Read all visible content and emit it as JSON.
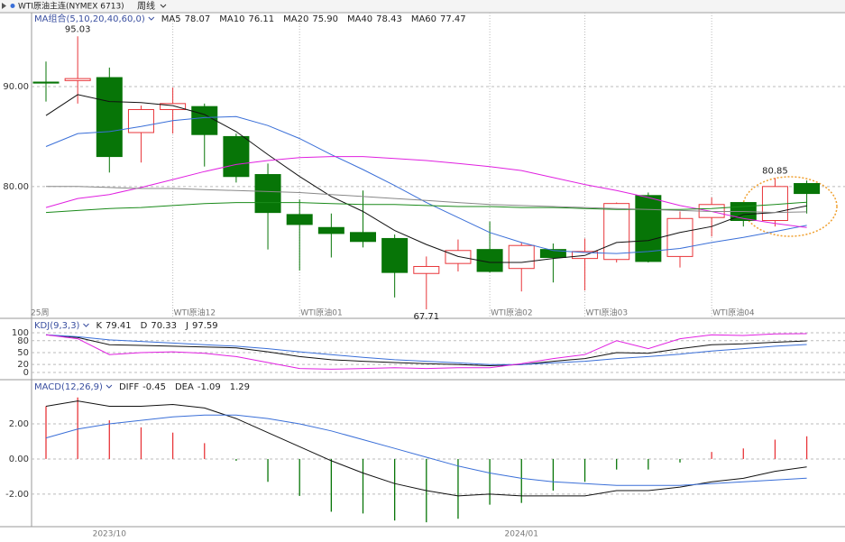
{
  "header": {
    "symbol": "WTI原油主连(NYMEX 6713)",
    "period": "周线"
  },
  "chart_data": [
    {
      "type": "candlestick",
      "title": "MA组合(5,10,20,40,60,0)",
      "period_label": "25周",
      "categories": [
        null,
        null,
        null,
        null,
        "WTI原油12",
        null,
        null,
        null,
        "WTI原油01",
        null,
        null,
        null,
        null,
        null,
        "WTI原油02",
        null,
        null,
        "WTI原油03",
        null,
        null,
        null,
        "WTI原油04",
        null,
        null,
        null
      ],
      "open": [
        90.45,
        90.6,
        90.9,
        85.4,
        87.7,
        88.0,
        85.0,
        81.2,
        77.2,
        75.9,
        75.4,
        74.8,
        71.3,
        72.3,
        73.7,
        71.8,
        73.7,
        72.8,
        72.7,
        79.1,
        73.0,
        76.9,
        78.4,
        76.6,
        80.3
      ],
      "high": [
        92.5,
        95.03,
        91.9,
        88.1,
        89.9,
        88.3,
        85.3,
        82.3,
        78.7,
        77.3,
        79.6,
        75.2,
        73.0,
        74.7,
        76.5,
        74.4,
        74.3,
        74.8,
        78.4,
        79.4,
        77.5,
        78.9,
        78.4,
        80.85,
        80.6
      ],
      "low": [
        88.5,
        88.3,
        81.4,
        82.4,
        85.3,
        82.0,
        80.4,
        73.7,
        71.6,
        72.9,
        73.9,
        68.9,
        67.71,
        71.5,
        71.4,
        69.5,
        70.4,
        69.6,
        72.4,
        72.4,
        71.9,
        75.0,
        76.0,
        76.0,
        77.3
      ],
      "close": [
        90.35,
        90.8,
        83.0,
        87.7,
        88.3,
        85.2,
        81.0,
        77.4,
        76.2,
        75.3,
        74.5,
        71.4,
        72.0,
        73.6,
        71.5,
        74.1,
        72.9,
        73.5,
        78.3,
        72.5,
        76.8,
        78.2,
        76.6,
        80.0,
        79.3
      ],
      "up_color": "#e8363a",
      "down_color": "#077507",
      "annotations": [
        {
          "value": 95.03,
          "index": 1
        },
        {
          "value": 67.71,
          "index": 12
        },
        {
          "value": 80.85,
          "index": 23
        }
      ],
      "series": [
        {
          "name": "MA5",
          "color": "#111111",
          "legend_value": "78.07",
          "values": [
            87.1,
            89.2,
            88.5,
            88.4,
            88.1,
            87.2,
            85.5,
            83.2,
            81.0,
            79.0,
            77.5,
            75.6,
            74.2,
            73.0,
            72.4,
            72.4,
            72.8,
            73.1,
            74.4,
            74.6,
            75.4,
            76.0,
            77.2,
            77.4,
            78.07
          ]
        },
        {
          "name": "MA10",
          "color": "#3a6fd8",
          "legend_value": "76.11",
          "values": [
            84.0,
            85.3,
            85.5,
            86.0,
            86.6,
            86.9,
            87.0,
            86.1,
            84.8,
            83.2,
            81.7,
            80.1,
            78.4,
            76.9,
            75.4,
            74.4,
            73.6,
            73.4,
            73.3,
            73.5,
            73.8,
            74.4,
            74.9,
            75.5,
            76.11
          ]
        },
        {
          "name": "MA20",
          "color": "#e020e0",
          "legend_value": "75.90",
          "values": [
            77.9,
            78.8,
            79.2,
            79.9,
            80.7,
            81.5,
            82.2,
            82.6,
            82.9,
            83.0,
            83.0,
            82.8,
            82.6,
            82.3,
            82.0,
            81.6,
            80.9,
            80.2,
            79.6,
            78.9,
            78.1,
            77.5,
            76.8,
            76.3,
            75.9
          ]
        },
        {
          "name": "MA40",
          "color": "#1a8a1a",
          "legend_value": "78.43",
          "values": [
            77.4,
            77.6,
            77.8,
            77.9,
            78.1,
            78.3,
            78.4,
            78.4,
            78.4,
            78.3,
            78.2,
            78.2,
            78.1,
            78.0,
            78.0,
            77.9,
            77.9,
            77.8,
            77.7,
            77.7,
            77.7,
            77.8,
            78.0,
            78.2,
            78.43
          ]
        },
        {
          "name": "MA60",
          "color": "#888888",
          "legend_value": "77.47",
          "values": [
            80.0,
            80.0,
            79.9,
            79.8,
            79.8,
            79.7,
            79.6,
            79.5,
            79.4,
            79.2,
            79.0,
            78.8,
            78.6,
            78.4,
            78.2,
            78.1,
            78.0,
            77.9,
            77.8,
            77.7,
            77.6,
            77.5,
            77.5,
            77.4,
            77.47
          ]
        }
      ],
      "ylim": [
        66.9,
        97.4
      ],
      "yticks": [
        {
          "value": 80,
          "label": "80.00"
        },
        {
          "value": 90,
          "label": "90.00"
        }
      ],
      "grid": true
    },
    {
      "type": "line",
      "title": "KDJ(9,3,3)",
      "series": [
        {
          "name": "K",
          "color": "#111111",
          "values": [
            95,
            88,
            70,
            68,
            66,
            64,
            62,
            52,
            40,
            32,
            28,
            25,
            22,
            20,
            17,
            20,
            28,
            35,
            50,
            48,
            60,
            70,
            72,
            76,
            79.41
          ]
        },
        {
          "name": "D",
          "color": "#3a6fd8",
          "values": [
            95,
            90,
            82,
            78,
            74,
            70,
            66,
            60,
            52,
            45,
            38,
            32,
            28,
            24,
            20,
            20,
            24,
            28,
            35,
            40,
            46,
            54,
            60,
            66,
            70.33
          ]
        },
        {
          "name": "J",
          "color": "#e020e0",
          "values": [
            95,
            85,
            45,
            50,
            52,
            48,
            40,
            25,
            10,
            8,
            10,
            12,
            10,
            12,
            12,
            22,
            35,
            45,
            80,
            60,
            85,
            95,
            93,
            97,
            97.59
          ]
        }
      ],
      "ylim": [
        -16,
        134
      ],
      "yticks": [
        0,
        20,
        50,
        80,
        100
      ],
      "grid": true
    },
    {
      "type": "macd",
      "title": "MACD(12,26,9)",
      "categories": [
        null,
        null,
        "2023/10",
        null,
        null,
        null,
        null,
        null,
        null,
        null,
        null,
        null,
        null,
        null,
        null,
        "2024/01",
        null,
        null,
        null,
        null,
        null,
        null,
        null,
        null,
        null
      ],
      "series": [
        {
          "name": "DIFF",
          "color": "#111111",
          "values": [
            3.0,
            3.3,
            3.0,
            3.0,
            3.1,
            2.9,
            2.3,
            1.5,
            0.7,
            -0.1,
            -0.8,
            -1.4,
            -1.8,
            -2.1,
            -2.0,
            -2.1,
            -2.1,
            -2.1,
            -1.8,
            -1.8,
            -1.6,
            -1.3,
            -1.1,
            -0.7,
            -0.45
          ]
        },
        {
          "name": "DEA",
          "color": "#3a6fd8",
          "values": [
            1.2,
            1.7,
            2.0,
            2.2,
            2.4,
            2.5,
            2.5,
            2.3,
            2.0,
            1.6,
            1.1,
            0.6,
            0.1,
            -0.4,
            -0.8,
            -1.1,
            -1.3,
            -1.4,
            -1.5,
            -1.5,
            -1.5,
            -1.4,
            -1.3,
            -1.2,
            -1.09
          ]
        }
      ],
      "histogram": {
        "up_color": "#e8363a",
        "down_color": "#077507",
        "values": [
          3.0,
          3.5,
          2.2,
          1.8,
          1.5,
          0.9,
          -0.1,
          -1.3,
          -2.1,
          -3.0,
          -3.1,
          -3.5,
          -3.6,
          -3.4,
          -2.6,
          -2.5,
          -1.8,
          -1.3,
          -0.6,
          -0.6,
          -0.2,
          0.4,
          0.6,
          1.1,
          1.29
        ]
      },
      "ylim": [
        -3.85,
        4.46
      ],
      "yticks": [
        {
          "value": -2,
          "label": "-2.00"
        },
        {
          "value": 0,
          "label": "0.00"
        },
        {
          "value": 2,
          "label": "2.00"
        }
      ],
      "grid": true
    }
  ]
}
